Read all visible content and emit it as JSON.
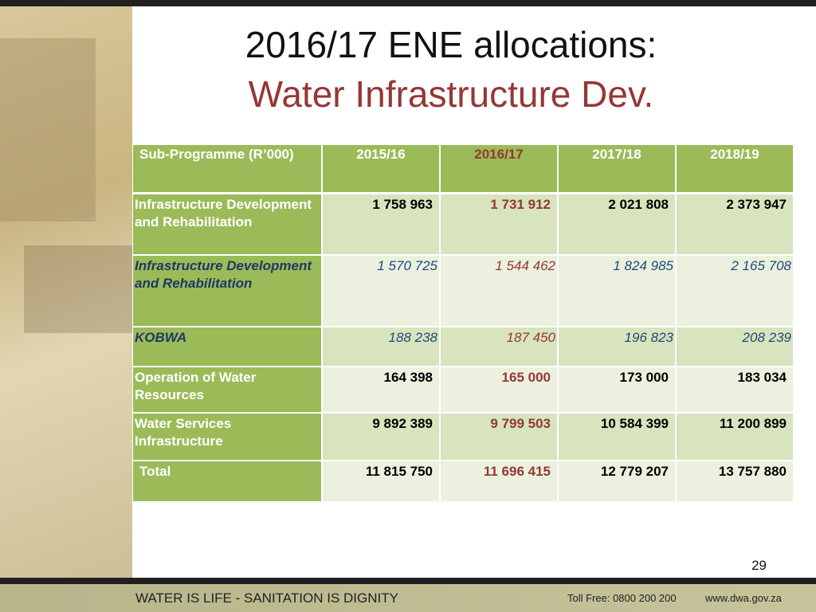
{
  "title": {
    "line1": "2016/17 ENE allocations:",
    "line2": "Water Infrastructure Dev."
  },
  "table": {
    "header": [
      "Sub-Programme (R’000)",
      "2015/16",
      "2016/17",
      "2017/18",
      "2018/19"
    ],
    "rows": [
      {
        "label": "Infrastructure Development and Rehabilitation",
        "values": [
          "1 758 963",
          "1 731 912",
          "2 021 808",
          "2 373 947"
        ],
        "italic": false
      },
      {
        "label": "Infrastructure Development and Rehabilitation",
        "values": [
          "1 570 725",
          "1 544 462",
          "1 824 985",
          "2 165 708"
        ],
        "italic": true
      },
      {
        "label": "KOBWA",
        "values": [
          "188 238",
          "187 450",
          "196 823",
          "208 239"
        ],
        "italic": true
      },
      {
        "label": "Operation of Water Resources",
        "values": [
          "164 398",
          "165 000",
          "173 000",
          "183 034"
        ],
        "italic": false
      },
      {
        "label": "Water Services Infrastructure",
        "values": [
          "9 892 389",
          "9 799 503",
          "10 584 399",
          "11 200 899"
        ],
        "italic": false
      },
      {
        "label": "Total",
        "values": [
          "11 815 750",
          "11 696 415",
          "12 779 207",
          "13 757 880"
        ],
        "italic": false
      }
    ]
  },
  "page_number": "29",
  "footer": {
    "slogan": "WATER IS LIFE - SANITATION IS DIGNITY",
    "toll_free": "Toll Free: 0800 200 200",
    "website": "www.dwa.gov.za"
  }
}
